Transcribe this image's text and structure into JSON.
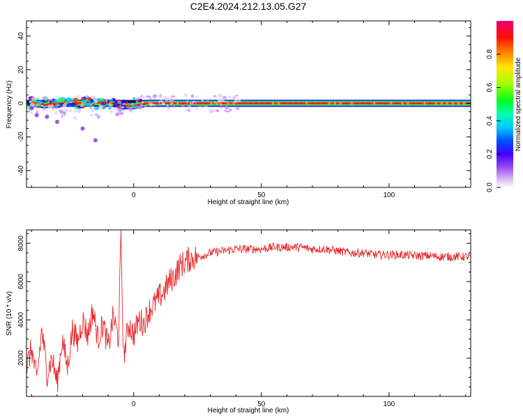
{
  "figure": {
    "title": "C2E4.2024.212.13.05.G27"
  },
  "chart_data": [
    {
      "type": "heatmap",
      "xlabel": "Height of straight line (km)",
      "ylabel": "Frequency (Hz)",
      "xlim": [
        -42,
        132
      ],
      "ylim": [
        -50,
        49
      ],
      "xticks": [
        0,
        50,
        100
      ],
      "yticks": [
        -40,
        -20,
        0,
        20,
        40
      ],
      "description_points": [
        {
          "x": -40,
          "y": 0.5
        },
        {
          "x": -35,
          "y": -1
        },
        {
          "x": -30,
          "y": 0
        },
        {
          "x": -22,
          "y": 0
        },
        {
          "x": -15,
          "y": 0.5
        },
        {
          "x": -8,
          "y": 0
        },
        {
          "x": -5,
          "y": -1.5
        },
        {
          "x": 0,
          "y": -1.5
        },
        {
          "x": 5,
          "y": 0
        },
        {
          "x": 20,
          "y": 0
        },
        {
          "x": 60,
          "y": 0
        },
        {
          "x": 100,
          "y": 0
        },
        {
          "x": 132,
          "y": 0
        }
      ],
      "scatter_blobs": [
        {
          "x": -38,
          "y": -7
        },
        {
          "x": -34,
          "y": -8
        },
        {
          "x": -30,
          "y": -11
        },
        {
          "x": -20,
          "y": -15
        },
        {
          "x": -15,
          "y": -22
        },
        {
          "x": -40,
          "y": -3
        }
      ]
    },
    {
      "type": "line",
      "xlabel": "Height of straight line (km)",
      "ylabel": "SNR (10 * v/v)",
      "xlim": [
        -42,
        132
      ],
      "ylim": [
        0,
        8700
      ],
      "xticks": [
        0,
        50,
        100
      ],
      "yticks": [
        2000,
        4000,
        6000,
        8000
      ],
      "series": [
        {
          "color": "#e8262a",
          "x": [
            -42,
            -40,
            -38,
            -36,
            -34,
            -32,
            -30,
            -28,
            -26,
            -24,
            -22,
            -20,
            -18,
            -16,
            -14,
            -12,
            -10,
            -8,
            -6,
            -5,
            -4,
            -2,
            0,
            2,
            4,
            6,
            8,
            10,
            12,
            14,
            16,
            18,
            20,
            22,
            25,
            28,
            30,
            35,
            40,
            45,
            50,
            55,
            60,
            65,
            70,
            75,
            80,
            85,
            90,
            95,
            100,
            105,
            110,
            115,
            120,
            125,
            130,
            132
          ],
          "y": [
            1500,
            2500,
            800,
            3500,
            1200,
            2000,
            700,
            3000,
            1500,
            3500,
            2800,
            4000,
            3200,
            4500,
            3000,
            3800,
            2500,
            4200,
            3000,
            8400,
            2000,
            3800,
            3200,
            4000,
            3800,
            4500,
            4800,
            5200,
            5500,
            6000,
            6300,
            6800,
            7000,
            7200,
            7300,
            7400,
            7500,
            7600,
            7700,
            7700,
            7700,
            7800,
            7800,
            7800,
            7700,
            7700,
            7600,
            7500,
            7500,
            7400,
            7400,
            7400,
            7350,
            7350,
            7300,
            7300,
            7300,
            7300
          ]
        }
      ]
    }
  ],
  "colorbar": {
    "label": "Normalized spectral amplitude",
    "ticks": [
      "0.0",
      "0.2",
      "0.4",
      "0.6",
      "0.8"
    ],
    "range": [
      0,
      1
    ]
  },
  "colors": {
    "colormap": [
      "#f2e3fb",
      "#b66bf0",
      "#4b00ff",
      "#0000ff",
      "#0060ff",
      "#00c8ff",
      "#00ffbe",
      "#00ff32",
      "#78ff00",
      "#ffff00",
      "#ffb400",
      "#ff5000",
      "#ff0000",
      "#f00070"
    ]
  }
}
